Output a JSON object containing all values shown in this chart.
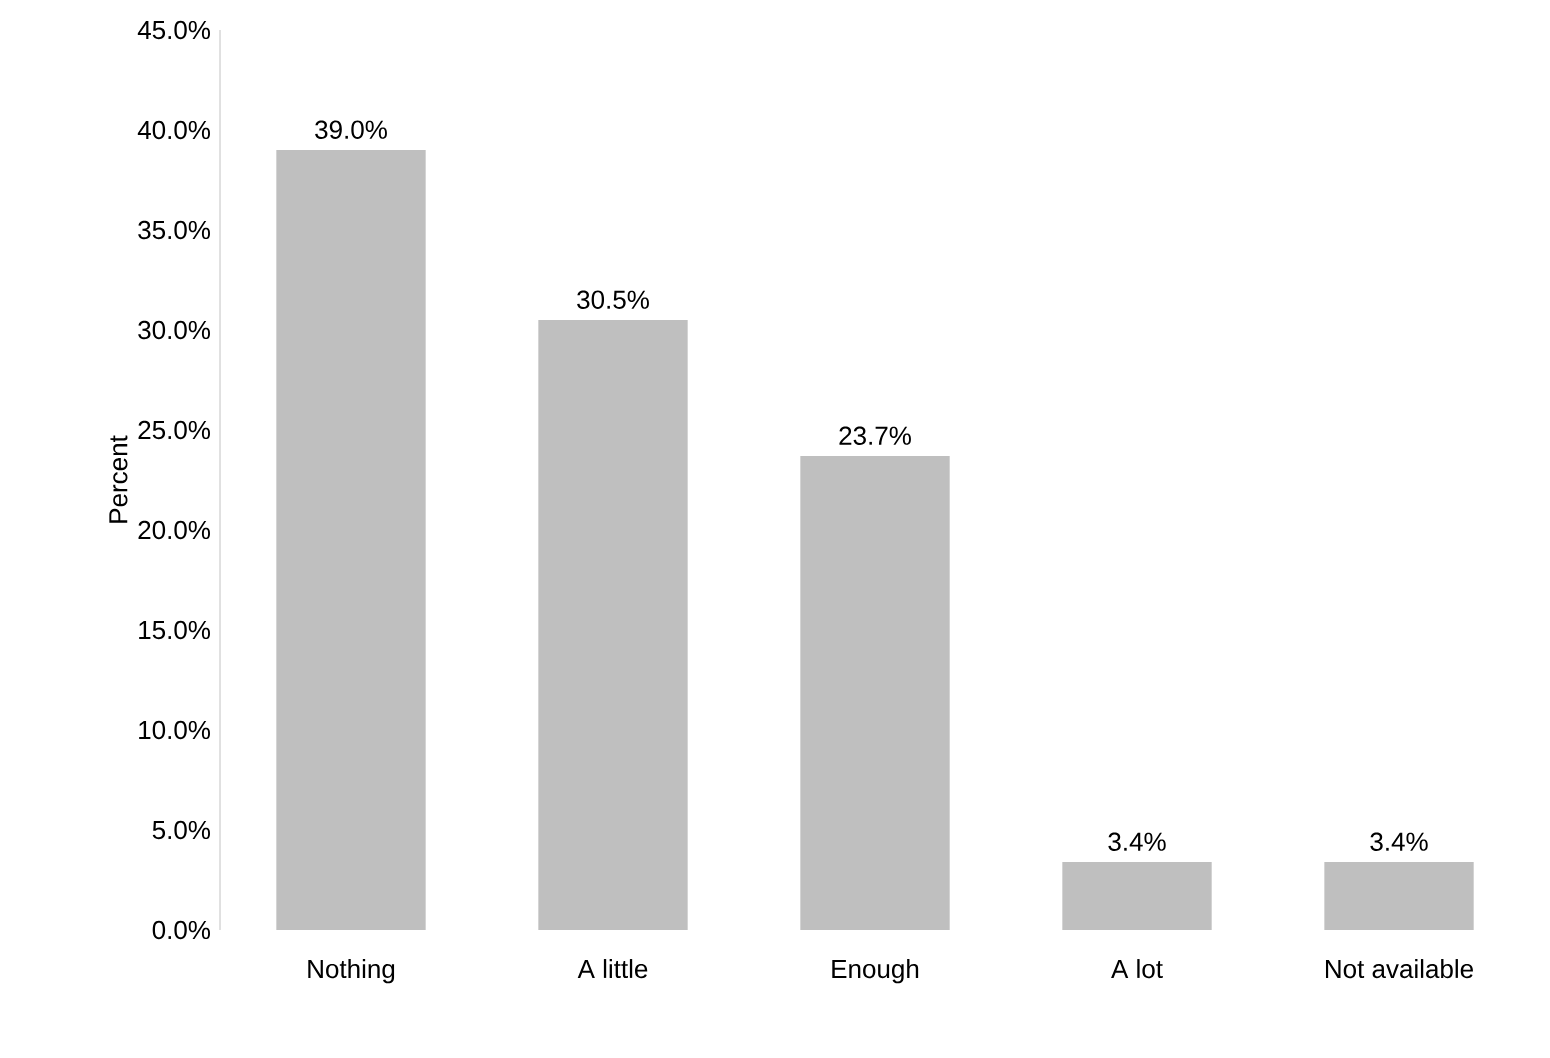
{
  "chart_data": {
    "type": "bar",
    "ylabel": "Percent",
    "categories": [
      "Nothing",
      "A little",
      "Enough",
      "A lot",
      "Not available"
    ],
    "values": [
      39.0,
      30.5,
      23.7,
      3.4,
      3.4
    ],
    "value_labels": [
      "39.0%",
      "30.5%",
      "23.7%",
      "3.4%",
      "3.4%"
    ],
    "color": "#bfbfbf",
    "ylim": [
      0,
      45
    ],
    "yticks": [
      {
        "value": 0,
        "label": "0.0%"
      },
      {
        "value": 5,
        "label": "5.0%"
      },
      {
        "value": 10,
        "label": "10.0%"
      },
      {
        "value": 15,
        "label": "15.0%"
      },
      {
        "value": 20,
        "label": "20.0%"
      },
      {
        "value": 25,
        "label": "25.0%"
      },
      {
        "value": 30,
        "label": "30.0%"
      },
      {
        "value": 35,
        "label": "35.0%"
      },
      {
        "value": 40,
        "label": "40.0%"
      },
      {
        "value": 45,
        "label": "45.0%"
      }
    ]
  }
}
